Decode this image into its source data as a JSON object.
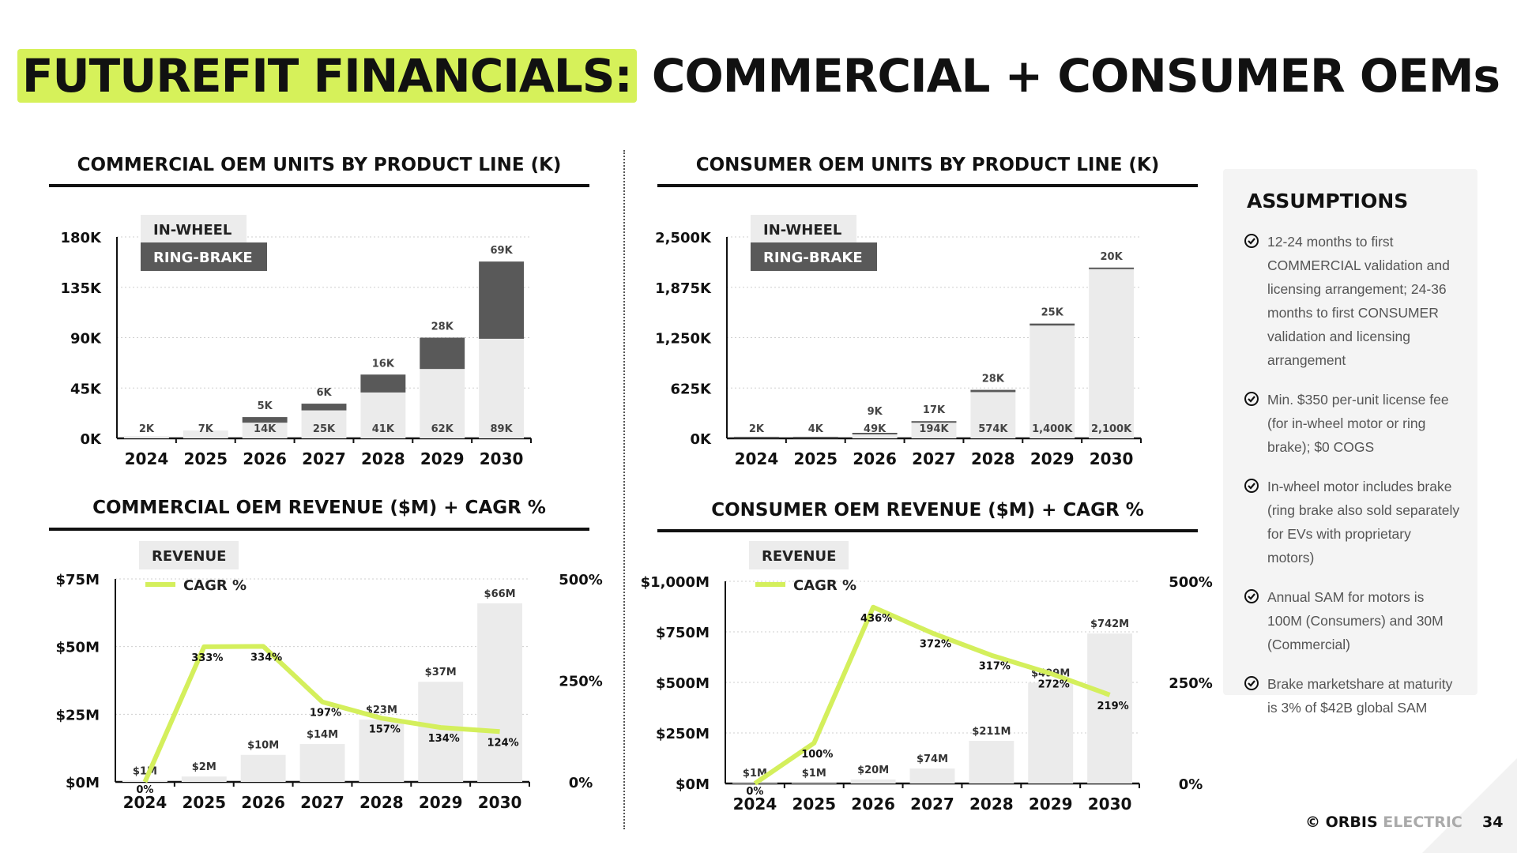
{
  "title": {
    "highlight": "FUTUREFIT FINANCIALS:",
    "rest": "COMMERCIAL + CONSUMER OEMs"
  },
  "colors": {
    "dark": "#595959",
    "light": "#ebebeb",
    "accent": "#d4ef5c",
    "text": "#111111"
  },
  "chart_data": [
    {
      "type": "bar",
      "stacked": true,
      "title": "COMMERCIAL OEM UNITS BY PRODUCT LINE (K)",
      "categories": [
        "2024",
        "2025",
        "2026",
        "2027",
        "2028",
        "2029",
        "2030"
      ],
      "ylim": [
        0,
        180
      ],
      "yticks": [
        "180K",
        "135K",
        "90K",
        "45K",
        "0K"
      ],
      "legend": [
        "IN-WHEEL",
        "RING-BRAKE"
      ],
      "series": [
        {
          "name": "IN-WHEEL",
          "values": [
            2,
            7,
            14,
            25,
            41,
            62,
            89
          ],
          "labels": [
            "2K",
            "7K",
            "14K",
            "25K",
            "41K",
            "62K",
            "89K"
          ]
        },
        {
          "name": "RING-BRAKE",
          "values": [
            0,
            0,
            5,
            6,
            16,
            28,
            69
          ],
          "labels": [
            "",
            "",
            "5K",
            "6K",
            "16K",
            "28K",
            "69K"
          ]
        }
      ]
    },
    {
      "type": "bar",
      "stacked": true,
      "title": "CONSUMER OEM UNITS BY PRODUCT LINE (K)",
      "categories": [
        "2024",
        "2025",
        "2026",
        "2027",
        "2028",
        "2029",
        "2030"
      ],
      "ylim": [
        0,
        2500
      ],
      "yticks": [
        "2,500K",
        "1,875K",
        "1,250K",
        "625K",
        "0K"
      ],
      "legend": [
        "IN-WHEEL",
        "RING-BRAKE"
      ],
      "series": [
        {
          "name": "IN-WHEEL",
          "values": [
            0,
            0,
            49,
            194,
            574,
            1400,
            2100
          ],
          "labels": [
            "",
            "",
            "49K",
            "194K",
            "574K",
            "1,400K",
            "2,100K"
          ]
        },
        {
          "name": "RING-BRAKE",
          "values": [
            2,
            4,
            9,
            17,
            28,
            25,
            20
          ],
          "labels": [
            "2K",
            "4K",
            "9K",
            "17K",
            "28K",
            "25K",
            "20K"
          ]
        }
      ]
    },
    {
      "type": "bar",
      "title": "COMMERCIAL OEM REVENUE ($M) + CAGR %",
      "categories": [
        "2024",
        "2025",
        "2026",
        "2027",
        "2028",
        "2029",
        "2030"
      ],
      "ylim": [
        0,
        75
      ],
      "yticks": [
        "$75M",
        "$50M",
        "$25M",
        "$0M"
      ],
      "y2lim": [
        0,
        500
      ],
      "y2ticks": [
        "500%",
        "250%",
        "0%"
      ],
      "legend": [
        "REVENUE",
        "CAGR %"
      ],
      "series": [
        {
          "name": "REVENUE",
          "values": [
            0.5,
            2,
            10,
            14,
            23,
            37,
            66
          ],
          "labels": [
            "$1M",
            "$2M",
            "$10M",
            "$14M",
            "$23M",
            "$37M",
            "$66M"
          ]
        },
        {
          "name": "CAGR %",
          "type": "line",
          "values": [
            0,
            333,
            334,
            197,
            157,
            134,
            124
          ],
          "labels": [
            "0%",
            "333%",
            "334%",
            "197%",
            "157%",
            "134%",
            "124%"
          ]
        }
      ]
    },
    {
      "type": "bar",
      "title": "CONSUMER OEM REVENUE ($M) + CAGR %",
      "categories": [
        "2024",
        "2025",
        "2026",
        "2027",
        "2028",
        "2029",
        "2030"
      ],
      "ylim": [
        0,
        1000
      ],
      "yticks": [
        "$1,000M",
        "$750M",
        "$500M",
        "$250M",
        "$0M"
      ],
      "y2lim": [
        0,
        500
      ],
      "y2ticks": [
        "500%",
        "250%",
        "0%"
      ],
      "legend": [
        "REVENUE",
        "CAGR %"
      ],
      "series": [
        {
          "name": "REVENUE",
          "values": [
            0.5,
            1,
            20,
            74,
            211,
            499,
            742
          ],
          "labels": [
            "$1M",
            "$1M",
            "$20M",
            "$74M",
            "$211M",
            "$499M",
            "$742M"
          ]
        },
        {
          "name": "CAGR %",
          "type": "line",
          "values": [
            0,
            100,
            436,
            372,
            317,
            272,
            219
          ],
          "labels": [
            "0%",
            "100%",
            "436%",
            "372%",
            "317%",
            "272%",
            "219%"
          ]
        }
      ]
    }
  ],
  "assumptions": {
    "title": "ASSUMPTIONS",
    "items": [
      "12-24 months to first COMMERCIAL validation and licensing arrangement; 24-36 months to first CONSUMER validation and licensing arrangement",
      "Min. $350 per-unit license fee (for in-wheel motor or ring brake); $0 COGS",
      "In-wheel motor includes brake (ring brake also sold separately for EVs with proprietary motors)",
      "Annual SAM for motors is 100M (Consumers) and 30M (Commercial)",
      "Brake marketshare at maturity is 3% of $42B global SAM"
    ]
  },
  "footer": {
    "brand_bold": "© ORBIS",
    "brand_light": "ELECTRIC",
    "page": "34"
  }
}
